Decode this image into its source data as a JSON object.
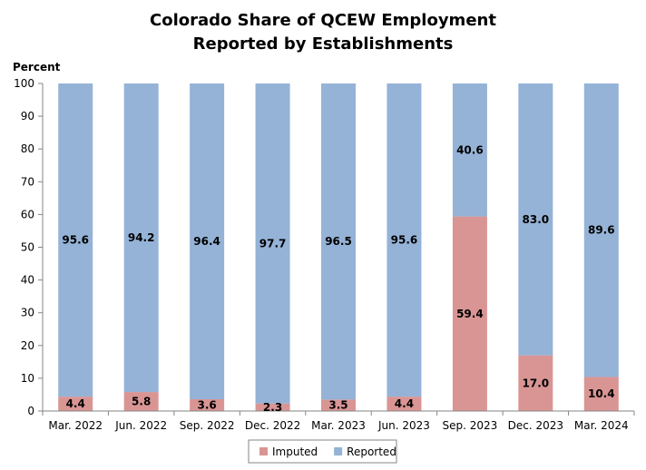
{
  "chart_data": {
    "type": "bar",
    "stacked": true,
    "title": [
      "Colorado Share of QCEW Employment",
      "Reported by Establishments"
    ],
    "ylabel": "Percent",
    "xlabel": "",
    "ylim": [
      0,
      100
    ],
    "yticks": [
      0,
      10,
      20,
      30,
      40,
      50,
      60,
      70,
      80,
      90,
      100
    ],
    "grid": false,
    "legend_position": "bottom",
    "categories": [
      "Mar. 2022",
      "Jun. 2022",
      "Sep. 2022",
      "Dec. 2022",
      "Mar. 2023",
      "Jun. 2023",
      "Sep. 2023",
      "Dec. 2023",
      "Mar. 2024"
    ],
    "series": [
      {
        "name": "Imputed",
        "color": "#D99594",
        "values": [
          4.4,
          5.8,
          3.6,
          2.3,
          3.5,
          4.4,
          59.4,
          17.0,
          10.4
        ],
        "labels": [
          "4.4",
          "5.8",
          "3.6",
          "2.3",
          "3.5",
          "4.4",
          "59.4",
          "17.0",
          "10.4"
        ]
      },
      {
        "name": "Reported",
        "color": "#95B3D7",
        "values": [
          95.6,
          94.2,
          96.4,
          97.7,
          96.5,
          95.6,
          40.6,
          83.0,
          89.6
        ],
        "labels": [
          "95.6",
          "94.2",
          "96.4",
          "97.7",
          "96.5",
          "95.6",
          "40.6",
          "83.0",
          "89.6"
        ]
      }
    ]
  }
}
